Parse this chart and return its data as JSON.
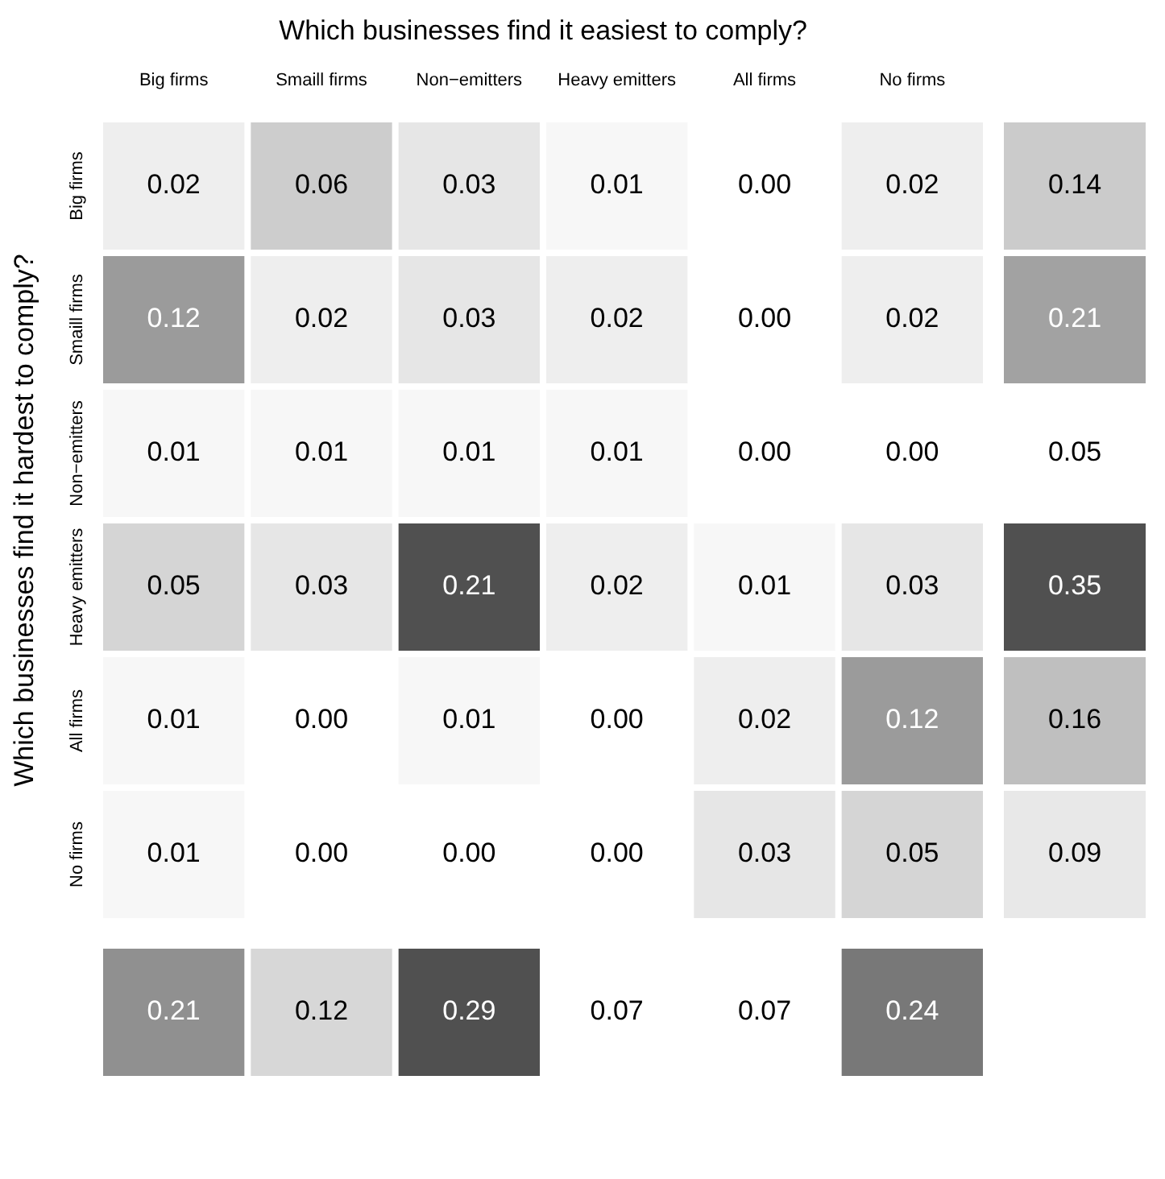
{
  "chart_data": [
    {
      "type": "heatmap",
      "title": "Which businesses find it easiest to comply?",
      "ylabel": "Which businesses find it hardest to comply?",
      "categories": [
        "Big firms",
        "Smaill firms",
        "Non−emitters",
        "Heavy emitters",
        "All firms",
        "No firms"
      ],
      "y_categories": [
        "Big firms",
        "Smaill firms",
        "Non−emitters",
        "Heavy emitters",
        "All firms",
        "No firms"
      ],
      "data_labels": true,
      "cells": [
        [
          0.02,
          0.06,
          0.03,
          0.01,
          0.0,
          0.02
        ],
        [
          0.12,
          0.02,
          0.03,
          0.02,
          0.0,
          0.02
        ],
        [
          0.01,
          0.01,
          0.01,
          0.01,
          0.0,
          0.0
        ],
        [
          0.05,
          0.03,
          0.21,
          0.02,
          0.01,
          0.03
        ],
        [
          0.01,
          0.0,
          0.01,
          0.0,
          0.02,
          0.12
        ],
        [
          0.01,
          0.0,
          0.0,
          0.0,
          0.03,
          0.05
        ]
      ],
      "cell_labels": [
        [
          "0.02",
          "0.06",
          "0.03",
          "0.01",
          "0.00",
          "0.02"
        ],
        [
          "0.12",
          "0.02",
          "0.03",
          "0.02",
          "0.00",
          "0.02"
        ],
        [
          "0.01",
          "0.01",
          "0.01",
          "0.01",
          "0.00",
          "0.00"
        ],
        [
          "0.05",
          "0.03",
          "0.21",
          "0.02",
          "0.01",
          "0.03"
        ],
        [
          "0.01",
          "0.00",
          "0.01",
          "0.00",
          "0.02",
          "0.12"
        ],
        [
          "0.01",
          "0.00",
          "0.00",
          "0.00",
          "0.03",
          "0.05"
        ]
      ]
    },
    {
      "type": "heatmap",
      "categories": [
        null
      ],
      "y_categories": [
        null,
        null,
        null,
        null,
        null,
        null
      ],
      "data_labels": true,
      "cells": [
        [
          0.14
        ],
        [
          0.21
        ],
        [
          0.05
        ],
        [
          0.35
        ],
        [
          0.16
        ],
        [
          0.09
        ]
      ]
    },
    {
      "type": "heatmap",
      "categories": [
        null,
        null,
        null,
        null,
        null,
        null
      ],
      "y_categories": [
        null
      ],
      "data_labels": true,
      "cells": [
        [
          0.21,
          0.12,
          0.29,
          0.07,
          0.07,
          0.24
        ]
      ]
    }
  ]
}
